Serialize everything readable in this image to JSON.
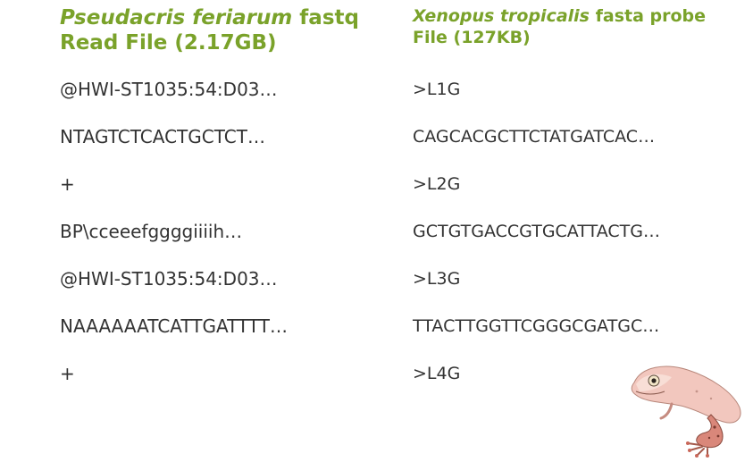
{
  "left": {
    "title_italic": "Pseudacris feriarum",
    "title_tail": " fastq",
    "title_line2": "Read File (2.17GB)",
    "lines": [
      "@HWI-ST1035:54:D03…",
      "NTAGTCTCACTGCTCT…",
      "+",
      "BP\\cceeefggggiiiih…",
      "@HWI-ST1035:54:D03…",
      "NAAAAAATCATTGATTTT…",
      "+"
    ]
  },
  "right": {
    "title_italic": "Xenopus  tropicalis",
    "title_tail": " fasta probe",
    "title_line2": "File (127KB)",
    "lines": [
      ">L1G",
      "CAGCACGCTTCTATGATCAC…",
      ">L2G",
      "GCTGTGACCGTGCATTACTG…",
      ">L3G",
      "TTACTTGGTTCGGGCGATGC…",
      ">L4G"
    ]
  },
  "colors": {
    "heading": "#7aa22a",
    "text": "#333333",
    "frog_skin": "#e9a9a0"
  },
  "illustration": "frog-illustration"
}
